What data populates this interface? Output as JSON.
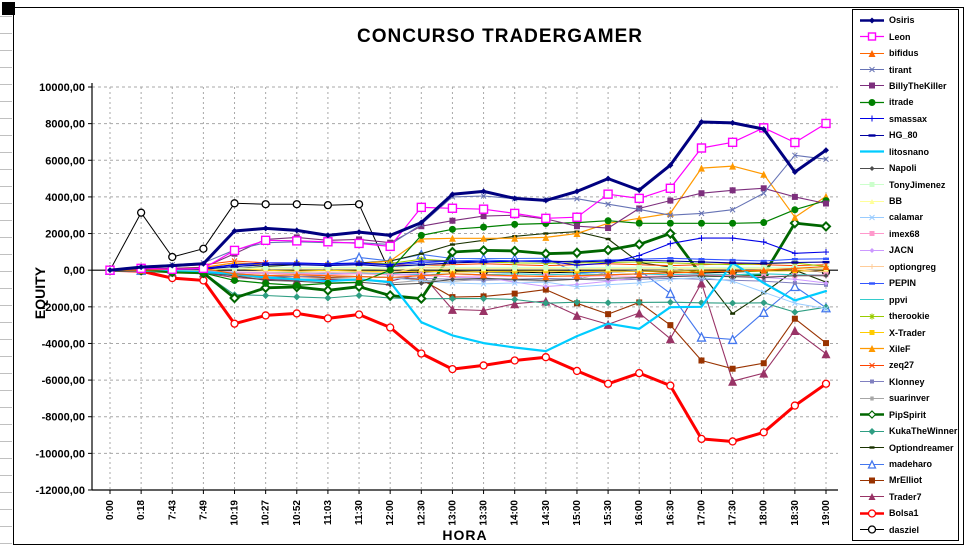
{
  "page": {
    "title": "CONCURSO TRADERGAMER",
    "x_axis_label": "HORA",
    "y_axis_label": "EQUITY"
  },
  "chart_data": {
    "type": "line",
    "title": "CONCURSO TRADERGAMER",
    "xlabel": "HORA",
    "ylabel": "EQUITY",
    "ylim": [
      -12000,
      10000
    ],
    "y_tick_step": 2000,
    "grid": true,
    "legend_position": "right",
    "y_tick_labels": [
      "10000,00",
      "8000,00",
      "6000,00",
      "4000,00",
      "2000,00",
      "0,00",
      "-2000,00",
      "-4000,00",
      "-6000,00",
      "-8000,00",
      "-10000,00",
      "-12000,00"
    ],
    "x": [
      "0:00",
      "0:18",
      "7:43",
      "7:49",
      "10:19",
      "10:27",
      "10:52",
      "11:03",
      "11:30",
      "12:00",
      "12:30",
      "13:00",
      "13:30",
      "14:00",
      "14:30",
      "15:00",
      "15:30",
      "16:00",
      "16:30",
      "17:00",
      "17:30",
      "18:00",
      "18:30",
      "19:00"
    ],
    "series": [
      {
        "name": "Osiris",
        "color": "#000080",
        "marker": "diamond",
        "marker_size": 6,
        "line_width": 3,
        "values": [
          0,
          170,
          250,
          350,
          2140,
          2280,
          2170,
          1900,
          2080,
          1900,
          2600,
          4140,
          4300,
          3920,
          3810,
          4300,
          5000,
          4370,
          5730,
          8090,
          8040,
          7700,
          5360,
          6550
        ]
      },
      {
        "name": "Leon",
        "color": "#FF00FF",
        "marker": "square-open",
        "marker_size": 8,
        "line_width": 1.2,
        "values": [
          0,
          100,
          50,
          100,
          1080,
          1630,
          1600,
          1550,
          1460,
          1300,
          3430,
          3380,
          3330,
          3100,
          2830,
          2890,
          4150,
          3920,
          4470,
          6670,
          6980,
          7770,
          6970,
          8010
        ]
      },
      {
        "name": "bifidus",
        "color": "#FF6600",
        "marker": "triangle",
        "marker_size": 7,
        "line_width": 1.1,
        "values": [
          0,
          0,
          50,
          100,
          -200,
          -300,
          -250,
          -300,
          -350,
          -400,
          -300,
          -200,
          -250,
          -300,
          -350,
          -300,
          -250,
          -200,
          -150,
          -100,
          -50,
          0,
          100,
          200
        ]
      },
      {
        "name": "tirant",
        "color": "#6673B5",
        "marker": "x",
        "marker_size": 5,
        "line_width": 1.1,
        "values": [
          0,
          200,
          300,
          400,
          1100,
          1500,
          1550,
          1500,
          1500,
          1400,
          2500,
          4000,
          4050,
          3900,
          3850,
          3900,
          3600,
          3320,
          3000,
          3100,
          3300,
          4200,
          6270,
          6060
        ]
      },
      {
        "name": "BillyTheKiller",
        "color": "#7D2F7D",
        "marker": "square",
        "marker_size": 6,
        "line_width": 1.1,
        "values": [
          0,
          100,
          100,
          150,
          900,
          1680,
          1790,
          1630,
          1680,
          1500,
          2400,
          2700,
          2950,
          3000,
          2800,
          2400,
          2300,
          3370,
          3800,
          4200,
          4360,
          4470,
          4000,
          3640
        ]
      },
      {
        "name": "itrade",
        "color": "#008000",
        "marker": "circle",
        "marker_size": 7,
        "line_width": 1.2,
        "values": [
          0,
          0,
          -100,
          -150,
          -560,
          -720,
          -830,
          -720,
          -670,
          0,
          1900,
          2230,
          2350,
          2500,
          2550,
          2600,
          2700,
          2560,
          2560,
          2560,
          2560,
          2600,
          3300,
          3800
        ]
      },
      {
        "name": "smassax",
        "color": "#0000E6",
        "marker": "plus",
        "marker_size": 6,
        "line_width": 1.1,
        "values": [
          0,
          50,
          100,
          100,
          300,
          400,
          400,
          350,
          400,
          300,
          500,
          500,
          450,
          500,
          520,
          270,
          390,
          800,
          1450,
          1750,
          1750,
          1540,
          920,
          990
        ]
      },
      {
        "name": "HG_80",
        "color": "#0000A0",
        "marker": "dash",
        "marker_size": 7,
        "line_width": 1.1,
        "values": [
          0,
          0,
          50,
          50,
          200,
          300,
          300,
          250,
          300,
          200,
          300,
          400,
          450,
          500,
          500,
          450,
          500,
          540,
          500,
          450,
          400,
          370,
          420,
          440
        ]
      },
      {
        "name": "litosnano",
        "color": "#00CCFF",
        "marker": "none",
        "marker_size": 0,
        "line_width": 2.2,
        "values": [
          0,
          0,
          -50,
          -100,
          -200,
          -400,
          -500,
          -600,
          -500,
          -650,
          -2840,
          -3560,
          -3980,
          -4220,
          -4420,
          -3600,
          -2920,
          -3200,
          -2020,
          -2000,
          400,
          -700,
          -1650,
          -1140
        ]
      },
      {
        "name": "Napoli",
        "color": "#4D4D4D",
        "marker": "diamond",
        "marker_size": 5,
        "line_width": 1,
        "values": [
          0,
          0,
          -100,
          -150,
          -300,
          -560,
          -600,
          -700,
          -650,
          -800,
          -720,
          -500,
          -450,
          -500,
          -550,
          -500,
          -450,
          -400,
          -350,
          -300,
          -350,
          -400,
          -300,
          -300
        ]
      },
      {
        "name": "TonyJimenez",
        "color": "#CCFFCC",
        "marker": "square",
        "marker_size": 5,
        "line_width": 1,
        "values": [
          0,
          0,
          50,
          50,
          100,
          150,
          150,
          150,
          150,
          100,
          260,
          150,
          150,
          150,
          150,
          150,
          150,
          150,
          150,
          150,
          150,
          150,
          170,
          170
        ]
      },
      {
        "name": "BB",
        "color": "#FFFF99",
        "marker": "triangle",
        "marker_size": 5,
        "line_width": 1,
        "values": [
          0,
          0,
          0,
          50,
          80,
          80,
          80,
          80,
          80,
          50,
          80,
          80,
          80,
          80,
          80,
          80,
          80,
          80,
          80,
          80,
          80,
          80,
          80,
          80
        ]
      },
      {
        "name": "calamar",
        "color": "#99CCFF",
        "marker": "x",
        "marker_size": 5,
        "line_width": 1,
        "values": [
          0,
          0,
          -50,
          -100,
          -200,
          -300,
          -250,
          -300,
          -350,
          -400,
          -600,
          -700,
          -750,
          -700,
          -650,
          -900,
          -800,
          -700,
          -500,
          -400,
          -600,
          -1200,
          -1800,
          -2100
        ]
      },
      {
        "name": "imex68",
        "color": "#FF99CC",
        "marker": "square",
        "marker_size": 5,
        "line_width": 1,
        "values": [
          0,
          0,
          -50,
          -50,
          -150,
          -200,
          -200,
          -250,
          -200,
          -250,
          -300,
          -350,
          -300,
          -350,
          -300,
          -350,
          -300,
          -350,
          -300,
          -250,
          -300,
          -350,
          -300,
          -250
        ]
      },
      {
        "name": "JACN",
        "color": "#CC99FF",
        "marker": "diamond",
        "marker_size": 5,
        "line_width": 1,
        "values": [
          0,
          0,
          0,
          -50,
          -100,
          -150,
          -200,
          -150,
          -200,
          -250,
          -180,
          -400,
          -390,
          -650,
          -890,
          -780,
          -600,
          -400,
          -350,
          -300,
          -340,
          -400,
          -500,
          -700
        ]
      },
      {
        "name": "optiongreg",
        "color": "#FFCC99",
        "marker": "plus",
        "marker_size": 5,
        "line_width": 1,
        "values": [
          0,
          0,
          0,
          -50,
          -100,
          -100,
          -100,
          -100,
          -100,
          -150,
          170,
          100,
          100,
          100,
          100,
          80,
          100,
          100,
          100,
          80,
          80,
          80,
          60,
          -100
        ]
      },
      {
        "name": "PEPIN",
        "color": "#3355FF",
        "marker": "dash",
        "marker_size": 6,
        "line_width": 1.1,
        "values": [
          0,
          0,
          50,
          100,
          200,
          300,
          350,
          300,
          350,
          300,
          400,
          500,
          550,
          500,
          450,
          500,
          550,
          600,
          650,
          600,
          550,
          500,
          600,
          620
        ]
      },
      {
        "name": "ppvi",
        "color": "#33CCCC",
        "marker": "none",
        "marker_size": 0,
        "line_width": 1.1,
        "values": [
          0,
          0,
          -50,
          -50,
          -100,
          -150,
          -150,
          -200,
          -150,
          -200,
          -250,
          -200,
          -250,
          -200,
          -250,
          -200,
          -250,
          -200,
          -250,
          -200,
          -250,
          -200,
          -250,
          -250
        ]
      },
      {
        "name": "therookie",
        "color": "#99CC00",
        "marker": "star",
        "marker_size": 6,
        "line_width": 1,
        "values": [
          0,
          0,
          100,
          100,
          200,
          300,
          350,
          300,
          350,
          370,
          600,
          500,
          450,
          400,
          380,
          400,
          420,
          450,
          400,
          350,
          300,
          350,
          400,
          200
        ]
      },
      {
        "name": "X-Trader",
        "color": "#FFCC00",
        "marker": "square",
        "marker_size": 5,
        "line_width": 1,
        "values": [
          0,
          0,
          0,
          0,
          100,
          0,
          -50,
          0,
          -50,
          -100,
          -50,
          -100,
          -80,
          -60,
          -50,
          -80,
          -50,
          -60,
          -50,
          -40,
          -60,
          -50,
          -30,
          -50
        ]
      },
      {
        "name": "XileF",
        "color": "#FF9900",
        "marker": "triangle",
        "marker_size": 7,
        "line_width": 1.2,
        "values": [
          0,
          0,
          100,
          150,
          400,
          300,
          350,
          300,
          350,
          500,
          1700,
          1740,
          1740,
          1740,
          1790,
          2000,
          2560,
          2830,
          3100,
          5570,
          5680,
          5240,
          2890,
          4030
        ]
      },
      {
        "name": "zeq27",
        "color": "#FF4400",
        "marker": "x",
        "marker_size": 5,
        "line_width": 1,
        "values": [
          0,
          100,
          200,
          300,
          500,
          400,
          350,
          300,
          350,
          300,
          250,
          300,
          350,
          300,
          250,
          300,
          350,
          300,
          250,
          300,
          350,
          300,
          250,
          300
        ]
      },
      {
        "name": "Klonney",
        "color": "#8080C0",
        "marker": "square",
        "marker_size": 4,
        "line_width": 1,
        "values": [
          0,
          0,
          -50,
          -100,
          -200,
          -300,
          -350,
          -300,
          -350,
          -400,
          -450,
          -500,
          -550,
          -500,
          -450,
          -500,
          -550,
          -500,
          -450,
          -500,
          -550,
          -600,
          -700,
          -800
        ]
      },
      {
        "name": "suarinver",
        "color": "#A6A6A6",
        "marker": "star",
        "marker_size": 5,
        "line_width": 1,
        "values": [
          0,
          -50,
          -100,
          -150,
          -300,
          -450,
          -500,
          -450,
          -500,
          -700,
          -560,
          -600,
          -500,
          -550,
          -600,
          -500,
          -100,
          -50,
          0,
          50,
          100,
          50,
          100,
          100
        ]
      },
      {
        "name": "PipSpirit",
        "color": "#006600",
        "marker": "diamond-open",
        "marker_size": 8,
        "line_width": 2.8,
        "values": [
          0,
          0,
          -100,
          -150,
          -1520,
          -960,
          -920,
          -1100,
          -900,
          -1380,
          -1550,
          990,
          1080,
          1050,
          900,
          950,
          1100,
          1410,
          2000,
          -280,
          -300,
          -250,
          2570,
          2390
        ]
      },
      {
        "name": "KukaTheWinner",
        "color": "#2F9E83",
        "marker": "diamond",
        "marker_size": 7,
        "line_width": 1.1,
        "values": [
          0,
          0,
          -100,
          -150,
          -1340,
          -1380,
          -1460,
          -1520,
          -1380,
          -1520,
          -1560,
          -1550,
          -1550,
          -1600,
          -1800,
          -1750,
          -1780,
          -1760,
          -1750,
          -1780,
          -1800,
          -1780,
          -2290,
          -2020
        ]
      },
      {
        "name": "Optiondreamer",
        "color": "#1A3300",
        "marker": "dash",
        "marker_size": 5,
        "line_width": 1.1,
        "values": [
          0,
          0,
          0,
          0,
          100,
          200,
          300,
          300,
          400,
          500,
          900,
          1400,
          1630,
          1850,
          2000,
          2100,
          1700,
          420,
          170,
          -180,
          -2370,
          -1250,
          0,
          -650
        ]
      },
      {
        "name": "madeharo",
        "color": "#4477EE",
        "marker": "triangle-open",
        "marker_size": 8,
        "line_width": 1.1,
        "values": [
          0,
          0,
          50,
          100,
          300,
          300,
          350,
          300,
          700,
          500,
          860,
          640,
          640,
          640,
          650,
          -150,
          -100,
          0,
          -1270,
          -3650,
          -3780,
          -2300,
          -890,
          -2050
        ]
      },
      {
        "name": "MrElliot",
        "color": "#993300",
        "marker": "square",
        "marker_size": 6,
        "line_width": 1.1,
        "values": [
          0,
          0,
          -50,
          -100,
          -300,
          -400,
          -350,
          -400,
          -350,
          -400,
          -510,
          -1470,
          -1430,
          -1280,
          -1060,
          -1810,
          -2400,
          -1760,
          -3000,
          -4930,
          -5380,
          -5080,
          -2650,
          -3980
        ]
      },
      {
        "name": "Trader7",
        "color": "#993366",
        "marker": "triangle",
        "marker_size": 9,
        "line_width": 1.1,
        "values": [
          0,
          0,
          -100,
          -150,
          -400,
          -500,
          -550,
          -500,
          -550,
          -600,
          -190,
          -2140,
          -2200,
          -1830,
          -1690,
          -2470,
          -2960,
          -2340,
          -3740,
          -700,
          -6060,
          -5620,
          -3290,
          -4560
        ]
      },
      {
        "name": "Bolsa1",
        "color": "#FF0000",
        "marker": "circle-open",
        "marker_size": 7,
        "line_width": 3,
        "values": [
          0,
          -50,
          -430,
          -560,
          -2920,
          -2470,
          -2360,
          -2630,
          -2420,
          -3130,
          -4550,
          -5400,
          -5200,
          -4930,
          -4750,
          -5500,
          -6200,
          -5620,
          -6300,
          -9210,
          -9350,
          -8850,
          -7390,
          -6200
        ]
      },
      {
        "name": "dasziel",
        "color": "#000000",
        "marker": "circle-open",
        "marker_size": 7,
        "line_width": 1,
        "values": [
          0,
          3140,
          720,
          1170,
          3650,
          3600,
          3600,
          3550,
          3600,
          -150,
          -100,
          -50,
          -100,
          -100,
          -150,
          -100,
          -100,
          -50,
          -100,
          -150,
          -100,
          -50,
          0,
          -100
        ]
      }
    ]
  }
}
